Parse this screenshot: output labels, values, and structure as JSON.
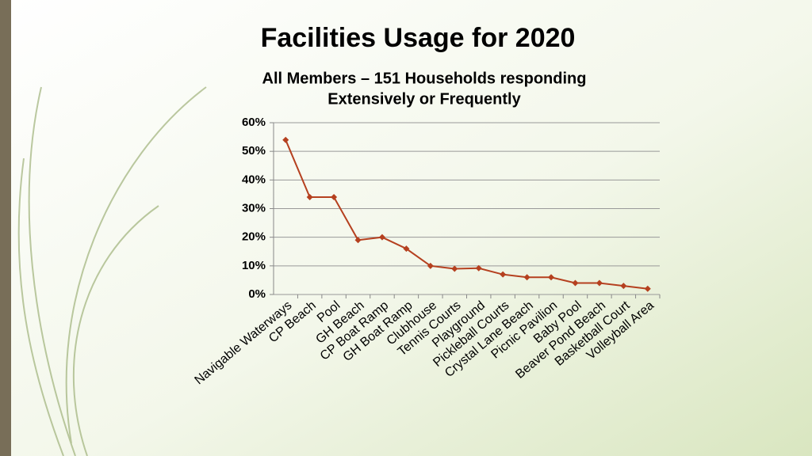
{
  "chart_data": {
    "type": "line",
    "title": "Facilities Usage for 2020",
    "subtitle": [
      "All Members – 151 Households responding",
      "Extensively or Frequently"
    ],
    "categories": [
      "Navigable Waterways",
      "CP Beach",
      "Pool",
      "GH Beach",
      "CP Boat Ramp",
      "GH Boat Ramp",
      "Clubhouse",
      "Tennis Courts",
      "Playground",
      "Pickleball Courts",
      "Crystal Lane Beach",
      "Picnic Pavilion",
      "Baby Pool",
      "Beaver Pond Beach",
      "Basketball Court",
      "Volleyball Area"
    ],
    "values": [
      54,
      34,
      34,
      19,
      20,
      16,
      10,
      9,
      9.2,
      7,
      6,
      6,
      4,
      4,
      3,
      2
    ],
    "color": "#b5401f",
    "ylim": [
      0,
      60
    ],
    "yticks": [
      {
        "value": 0,
        "label": "0%"
      },
      {
        "value": 10,
        "label": "10%"
      },
      {
        "value": 20,
        "label": "20%"
      },
      {
        "value": 30,
        "label": "30%"
      },
      {
        "value": 40,
        "label": "40%"
      },
      {
        "value": 50,
        "label": "50%"
      },
      {
        "value": 60,
        "label": "60%"
      }
    ],
    "grid": true
  }
}
